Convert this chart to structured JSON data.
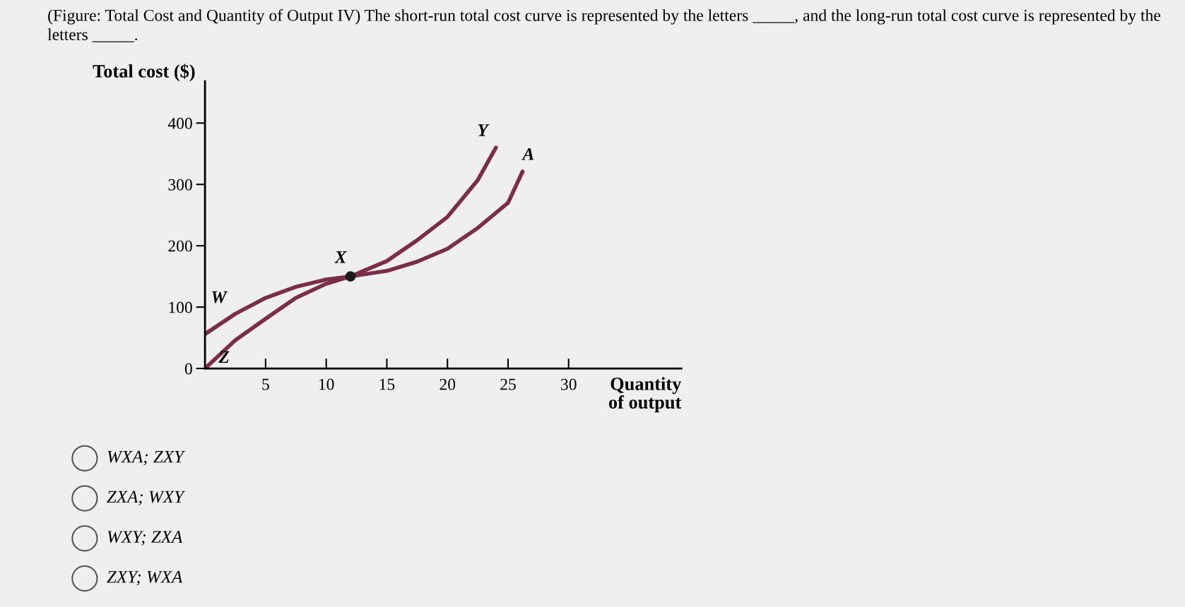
{
  "chart_data": {
    "type": "line",
    "title": "(Figure: Total Cost and Quantity of Output IV) The short-run total cost curve is represented by the letters _____, and the long-run total cost curve is represented by the letters _____.",
    "ylabel": "Total cost ($)",
    "xlabel": "Quantity\nof output",
    "xlim": [
      0,
      39.3
    ],
    "ylim": [
      0,
      468
    ],
    "xticks": [
      5,
      10,
      15,
      20,
      25,
      30
    ],
    "yticks": [
      0,
      100,
      200,
      300,
      400
    ],
    "grid": false,
    "legend": false,
    "line_style": "solid",
    "series": [
      {
        "color": "#7b2d4a",
        "x": [
          0,
          2.5,
          5,
          7.5,
          10,
          12,
          15,
          17.5,
          20,
          22.5,
          25,
          26.2
        ],
        "values": [
          56,
          89,
          115,
          133,
          145,
          150,
          159,
          174,
          195,
          229,
          270,
          321
        ]
      },
      {
        "color": "#7b2d4a",
        "x": [
          0,
          2.5,
          5,
          7.5,
          10,
          12,
          15,
          17.5,
          20,
          22.5,
          24
        ],
        "values": [
          0,
          46,
          81,
          115,
          138,
          150,
          175,
          209,
          247,
          307,
          360
        ]
      },
      {
        "type": "scatter",
        "marker": "circle",
        "color": "#1a1a1a",
        "x": [
          12
        ],
        "values": [
          150
        ]
      }
    ],
    "annotations": [
      {
        "text": "W",
        "x": 0,
        "y": 56
      },
      {
        "text": "Z",
        "x": 0,
        "y": 0
      },
      {
        "text": "X",
        "x": 12,
        "y": 150
      },
      {
        "text": "Y",
        "x": 24,
        "y": 360
      },
      {
        "text": "A",
        "x": 26.2,
        "y": 321
      },
      "WXA; ZXY",
      "ZXA; WXY",
      "WXY; ZXA",
      "ZXY; WXA"
    ]
  }
}
